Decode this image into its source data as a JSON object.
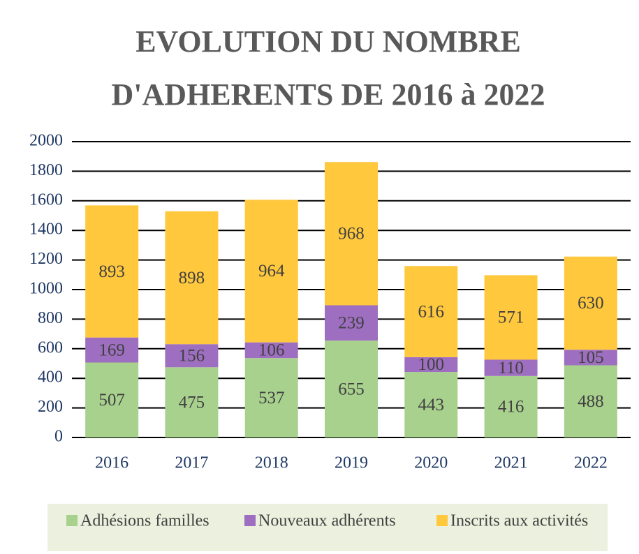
{
  "chart_data": {
    "type": "stacked_bar",
    "title": "EVOLUTION DU NOMBRE D'ADHERENTS DE 2016 à 2022",
    "categories": [
      "2016",
      "2017",
      "2018",
      "2019",
      "2020",
      "2021",
      "2022"
    ],
    "series": [
      {
        "name": "Adhésions familles",
        "color": "#a9d18e",
        "values": [
          507,
          475,
          537,
          655,
          443,
          416,
          488
        ]
      },
      {
        "name": "Nouveaux adhérents",
        "color": "#9e6fc0",
        "values": [
          169,
          156,
          106,
          239,
          100,
          110,
          105
        ]
      },
      {
        "name": "Inscrits aux activités",
        "color": "#ffc83d",
        "values": [
          893,
          898,
          964,
          968,
          616,
          571,
          630
        ]
      }
    ],
    "ylim": [
      0,
      2000
    ],
    "yticks": [
      0,
      200,
      400,
      600,
      800,
      1000,
      1200,
      1400,
      1600,
      1800,
      2000
    ],
    "grid": true,
    "legend": "bottom"
  }
}
